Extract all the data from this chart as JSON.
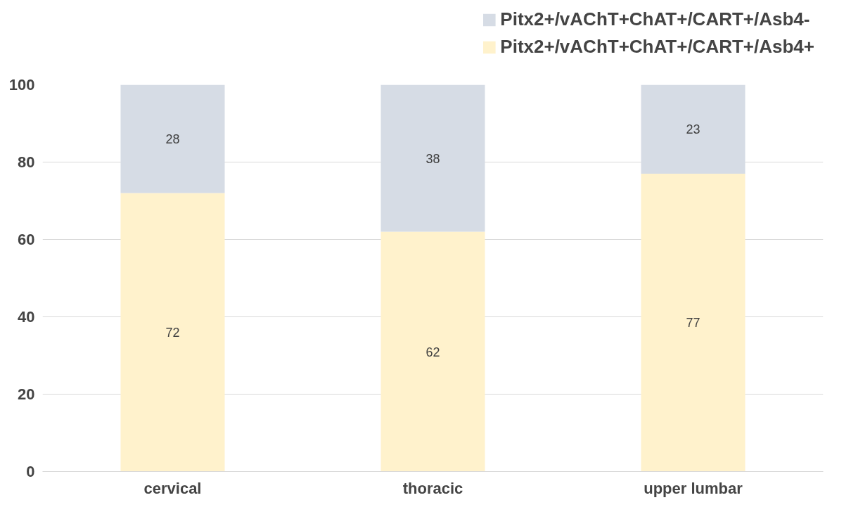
{
  "chart_data": {
    "type": "bar",
    "stacked": true,
    "categories": [
      "cervical",
      "thoracic",
      "upper lumbar"
    ],
    "series": [
      {
        "name": "Pitx2+/vAChT+ChAT+/CART+/Asb4+",
        "color": "#fff2cc",
        "values": [
          72,
          62,
          77
        ]
      },
      {
        "name": "Pitx2+/vAChT+ChAT+/CART+/Asb4-",
        "color": "#d6dce5",
        "values": [
          28,
          38,
          23
        ]
      }
    ],
    "ylim": [
      0,
      100
    ],
    "yticks": [
      0,
      20,
      40,
      60,
      80,
      100
    ],
    "grid": "y",
    "legend": "top right",
    "data_labels": true
  }
}
